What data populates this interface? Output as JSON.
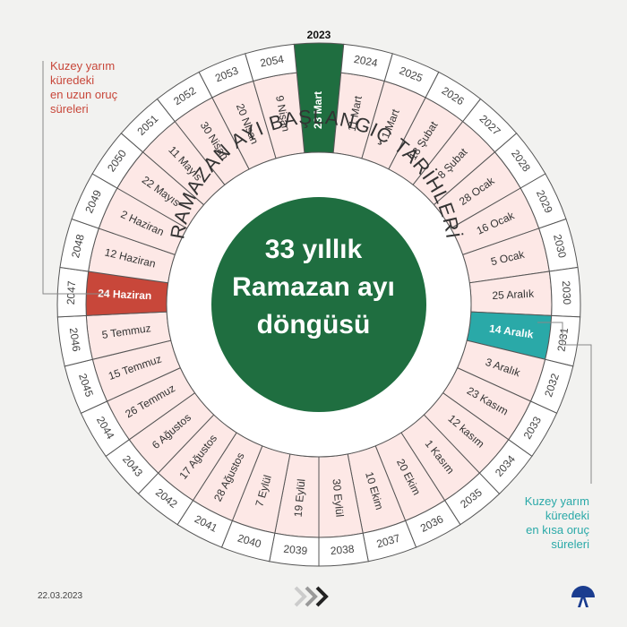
{
  "center": {
    "lines": [
      "33 yıllık",
      "Ramazan ayı",
      "döngüsü"
    ]
  },
  "ring_title": "RAMAZAN AYI BAŞLANGIÇ TARİHLERİ",
  "callouts": {
    "longest": [
      "Kuzey yarım",
      "küredeki",
      "en uzun oruç",
      "süreleri"
    ],
    "shortest": [
      "Kuzey yarım",
      "küredeki",
      "en kısa oruç",
      "süreleri"
    ]
  },
  "footer": {
    "date": "22.03.2023"
  },
  "colors": {
    "green": "#1f6e40",
    "red": "#c8473a",
    "teal": "#2aa9a8",
    "cell": "#fde8e6",
    "line": "#555555",
    "background": "#f2f2f0"
  },
  "cycle": [
    {
      "year": "2023",
      "date": "23 Mart",
      "highlight": "current"
    },
    {
      "year": "2024",
      "date": "11 Mart"
    },
    {
      "year": "2025",
      "date": "1 Mart"
    },
    {
      "year": "2026",
      "date": "18 Şubat"
    },
    {
      "year": "2027",
      "date": "8 Şubat"
    },
    {
      "year": "2028",
      "date": "28 Ocak"
    },
    {
      "year": "2029",
      "date": "16 Ocak"
    },
    {
      "year": "2030",
      "date": "5 Ocak"
    },
    {
      "year": "2030",
      "date": "25 Aralık"
    },
    {
      "year": "2031",
      "date": "14 Aralık",
      "highlight": "shortest"
    },
    {
      "year": "2032",
      "date": "3 Aralık"
    },
    {
      "year": "2033",
      "date": "23 Kasım"
    },
    {
      "year": "2034",
      "date": "12 kasım"
    },
    {
      "year": "2035",
      "date": "1 Kasım"
    },
    {
      "year": "2036",
      "date": "20 Ekim"
    },
    {
      "year": "2037",
      "date": "10 Ekim"
    },
    {
      "year": "2038",
      "date": "30 Eylül"
    },
    {
      "year": "2039",
      "date": "19 Eylül"
    },
    {
      "year": "2040",
      "date": "7 Eylül"
    },
    {
      "year": "2041",
      "date": "28 Ağustos"
    },
    {
      "year": "2042",
      "date": "17 Ağustos"
    },
    {
      "year": "2043",
      "date": "6 Ağustos"
    },
    {
      "year": "2044",
      "date": "26 Temmuz"
    },
    {
      "year": "2045",
      "date": "15 Temmuz"
    },
    {
      "year": "2046",
      "date": "5 Temmuz"
    },
    {
      "year": "2047",
      "date": "24 Haziran",
      "highlight": "longest"
    },
    {
      "year": "2048",
      "date": "12 Haziran"
    },
    {
      "year": "2049",
      "date": "2 Haziran"
    },
    {
      "year": "2050",
      "date": "22 Mayıs"
    },
    {
      "year": "2051",
      "date": "11 Mayıs"
    },
    {
      "year": "2052",
      "date": "30 Nisan"
    },
    {
      "year": "2053",
      "date": "20 Nisan"
    },
    {
      "year": "2054",
      "date": "9 Nisan"
    }
  ]
}
